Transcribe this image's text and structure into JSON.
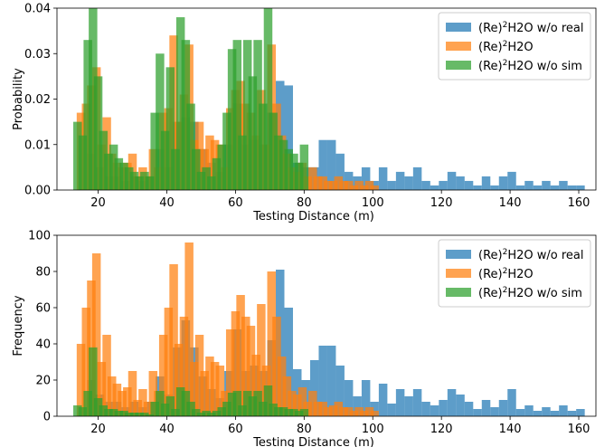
{
  "chart_data": [
    {
      "type": "bar",
      "xlabel": "Testing Distance (m)",
      "ylabel": "Probability",
      "xlim": [
        8,
        165
      ],
      "ylim": [
        0,
        0.04
      ],
      "xticks": [
        20,
        40,
        60,
        80,
        100,
        120,
        140,
        160
      ],
      "yticks": [
        0,
        0.01,
        0.02,
        0.03,
        0.04
      ],
      "ytick_labels": [
        "0.00",
        "0.01",
        "0.02",
        "0.03",
        "0.04"
      ],
      "legend_position": "top-right",
      "bin_width": 2.5,
      "series": [
        {
          "name": "(Re)2H2O w/o real",
          "legend_base": "(Re)",
          "legend_sup": "2",
          "legend_rest": "H2O w/o real",
          "color": "#1f77b4",
          "x": [
            18,
            20.5,
            23,
            25.5,
            28,
            30.5,
            33,
            35.5,
            38,
            40.5,
            43,
            45.5,
            48,
            50.5,
            53,
            55.5,
            58,
            60.5,
            63,
            65.5,
            68,
            70.5,
            73,
            75.5,
            78,
            80.5,
            83,
            85.5,
            88,
            90.5,
            93,
            95.5,
            98,
            100.5,
            103,
            105.5,
            108,
            110.5,
            113,
            115.5,
            118,
            120.5,
            123,
            125.5,
            128,
            130.5,
            133,
            135.5,
            138,
            140.5,
            143,
            145.5,
            148,
            150.5,
            153,
            155.5,
            158,
            160.5
          ],
          "values": [
            0.008,
            0.005,
            0.003,
            0.003,
            0.002,
            0.003,
            0.002,
            0.003,
            0.009,
            0.005,
            0.015,
            0.016,
            0.015,
            0.009,
            0.006,
            0.004,
            0.01,
            0.019,
            0.01,
            0.011,
            0.01,
            0.017,
            0.024,
            0.023,
            0.006,
            0.005,
            0.005,
            0.011,
            0.011,
            0.008,
            0.004,
            0.003,
            0.005,
            0.002,
            0.005,
            0.002,
            0.004,
            0.003,
            0.005,
            0.002,
            0.001,
            0.002,
            0.004,
            0.003,
            0.002,
            0.001,
            0.003,
            0.001,
            0.003,
            0.004,
            0.001,
            0.002,
            0.001,
            0.002,
            0.001,
            0.002,
            0.001,
            0.001
          ]
        },
        {
          "name": "(Re)2H2O",
          "legend_base": "(Re)",
          "legend_sup": "2",
          "legend_rest": "H2O",
          "color": "#ff7f0e",
          "x": [
            15,
            16.5,
            18,
            19.5,
            21,
            22.5,
            24,
            25.5,
            27,
            28.5,
            30,
            31.5,
            33,
            34.5,
            36,
            37.5,
            39,
            40.5,
            42,
            43.5,
            45,
            46.5,
            48,
            49.5,
            51,
            52.5,
            54,
            55.5,
            57,
            58.5,
            60,
            61.5,
            63,
            64.5,
            66,
            67.5,
            69,
            70.5,
            72,
            73.5,
            75,
            76.5,
            78,
            79.5,
            81,
            82.5,
            84,
            85.5,
            87,
            88.5,
            90,
            91.5,
            93,
            94.5,
            96,
            97.5,
            99,
            100.5
          ],
          "values": [
            0.017,
            0.019,
            0.023,
            0.027,
            0.01,
            0.016,
            0.008,
            0.006,
            0.005,
            0.006,
            0.008,
            0.003,
            0.005,
            0.003,
            0.009,
            0.005,
            0.017,
            0.018,
            0.034,
            0.015,
            0.021,
            0.032,
            0.011,
            0.015,
            0.009,
            0.012,
            0.011,
            0.01,
            0.005,
            0.018,
            0.022,
            0.024,
            0.019,
            0.017,
            0.012,
            0.022,
            0.01,
            0.032,
            0.019,
            0.012,
            0.008,
            0.005,
            0.004,
            0.006,
            0.003,
            0.005,
            0.003,
            0.003,
            0.002,
            0.002,
            0.003,
            0.002,
            0.002,
            0.001,
            0.002,
            0.001,
            0.002,
            0.001
          ]
        },
        {
          "name": "(Re)2H2O w/o sim",
          "legend_base": "(Re)",
          "legend_sup": "2",
          "legend_rest": "H2O w/o sim",
          "color": "#2ca02c",
          "x": [
            14,
            15.5,
            17,
            18.5,
            20,
            21.5,
            23,
            24.5,
            26,
            27.5,
            29,
            30.5,
            32,
            33.5,
            35,
            36.5,
            38,
            39.5,
            41,
            42.5,
            44,
            45.5,
            47,
            48.5,
            50,
            51.5,
            53,
            54.5,
            56,
            57.5,
            59,
            60.5,
            62,
            63.5,
            65,
            66.5,
            68,
            69.5,
            71,
            72.5,
            74,
            75.5,
            77,
            78.5,
            80
          ],
          "values": [
            0.015,
            0.012,
            0.033,
            0.04,
            0.025,
            0.013,
            0.008,
            0.01,
            0.007,
            0.006,
            0.005,
            0.004,
            0.003,
            0.004,
            0.003,
            0.017,
            0.03,
            0.013,
            0.027,
            0.009,
            0.038,
            0.033,
            0.019,
            0.009,
            0.004,
            0.005,
            0.003,
            0.007,
            0.01,
            0.017,
            0.031,
            0.033,
            0.012,
            0.033,
            0.025,
            0.033,
            0.019,
            0.04,
            0.017,
            0.012,
            0.011,
            0.009,
            0.008,
            0.006,
            0.01
          ]
        }
      ]
    },
    {
      "type": "bar",
      "xlabel": "Testing Distance (m)",
      "ylabel": "Frequency",
      "xlim": [
        8,
        165
      ],
      "ylim": [
        0,
        100
      ],
      "xticks": [
        20,
        40,
        60,
        80,
        100,
        120,
        140,
        160
      ],
      "yticks": [
        0,
        20,
        40,
        60,
        80,
        100
      ],
      "ytick_labels": [
        "0",
        "20",
        "40",
        "60",
        "80",
        "100"
      ],
      "legend_position": "top-right",
      "bin_width": 2.5,
      "series": [
        {
          "name": "(Re)2H2O w/o real",
          "legend_base": "(Re)",
          "legend_sup": "2",
          "legend_rest": "H2O w/o real",
          "color": "#1f77b4",
          "x": [
            18,
            20.5,
            23,
            25.5,
            28,
            30.5,
            33,
            35.5,
            38,
            40.5,
            43,
            45.5,
            48,
            50.5,
            53,
            55.5,
            58,
            60.5,
            63,
            65.5,
            68,
            70.5,
            73,
            75.5,
            78,
            80.5,
            83,
            85.5,
            88,
            90.5,
            93,
            95.5,
            98,
            100.5,
            103,
            105.5,
            108,
            110.5,
            113,
            115.5,
            118,
            120.5,
            123,
            125.5,
            128,
            130.5,
            133,
            135.5,
            138,
            140.5,
            143,
            145.5,
            148,
            150.5,
            153,
            155.5,
            158,
            160.5
          ],
          "values": [
            20,
            12,
            8,
            8,
            5,
            8,
            5,
            8,
            22,
            12,
            38,
            53,
            38,
            22,
            15,
            10,
            25,
            48,
            25,
            28,
            25,
            42,
            81,
            60,
            26,
            20,
            31,
            39,
            39,
            28,
            20,
            11,
            20,
            8,
            18,
            7,
            15,
            11,
            15,
            8,
            6,
            9,
            15,
            12,
            8,
            4,
            9,
            5,
            9,
            15,
            4,
            6,
            3,
            5,
            3,
            6,
            3,
            4
          ]
        },
        {
          "name": "(Re)2H2O",
          "legend_base": "(Re)",
          "legend_sup": "2",
          "legend_rest": "H2O",
          "color": "#ff7f0e",
          "x": [
            15,
            16.5,
            18,
            19.5,
            21,
            22.5,
            24,
            25.5,
            27,
            28.5,
            30,
            31.5,
            33,
            34.5,
            36,
            37.5,
            39,
            40.5,
            42,
            43.5,
            45,
            46.5,
            48,
            49.5,
            51,
            52.5,
            54,
            55.5,
            57,
            58.5,
            60,
            61.5,
            63,
            64.5,
            66,
            67.5,
            69,
            70.5,
            72,
            73.5,
            75,
            76.5,
            78,
            79.5,
            81,
            82.5,
            84,
            85.5,
            87,
            88.5,
            90,
            91.5,
            93,
            94.5,
            96,
            97.5,
            99,
            100.5
          ],
          "values": [
            40,
            60,
            75,
            90,
            30,
            45,
            22,
            18,
            14,
            16,
            25,
            9,
            15,
            8,
            25,
            14,
            45,
            60,
            84,
            40,
            55,
            96,
            30,
            45,
            25,
            33,
            30,
            28,
            14,
            48,
            58,
            67,
            55,
            50,
            34,
            62,
            28,
            80,
            55,
            33,
            22,
            14,
            12,
            16,
            8,
            14,
            8,
            8,
            5,
            6,
            8,
            5,
            5,
            3,
            5,
            3,
            5,
            3
          ]
        },
        {
          "name": "(Re)2H2O w/o sim",
          "legend_base": "(Re)",
          "legend_sup": "2",
          "legend_rest": "H2O w/o sim",
          "color": "#2ca02c",
          "x": [
            14,
            15.5,
            17,
            18.5,
            20,
            21.5,
            23,
            24.5,
            26,
            27.5,
            29,
            30.5,
            32,
            33.5,
            35,
            36.5,
            38,
            39.5,
            41,
            42.5,
            44,
            45.5,
            47,
            48.5,
            50,
            51.5,
            53,
            54.5,
            56,
            57.5,
            59,
            60.5,
            62,
            63.5,
            65,
            66.5,
            68,
            69.5,
            71,
            72.5,
            74,
            75.5,
            77,
            78.5,
            80
          ],
          "values": [
            6,
            5,
            14,
            38,
            10,
            6,
            4,
            4,
            3,
            3,
            2,
            2,
            2,
            2,
            1,
            8,
            14,
            7,
            11,
            4,
            16,
            14,
            8,
            4,
            2,
            3,
            2,
            3,
            5,
            8,
            13,
            14,
            6,
            14,
            11,
            14,
            8,
            17,
            7,
            5,
            5,
            4,
            4,
            3,
            4
          ]
        }
      ]
    }
  ]
}
